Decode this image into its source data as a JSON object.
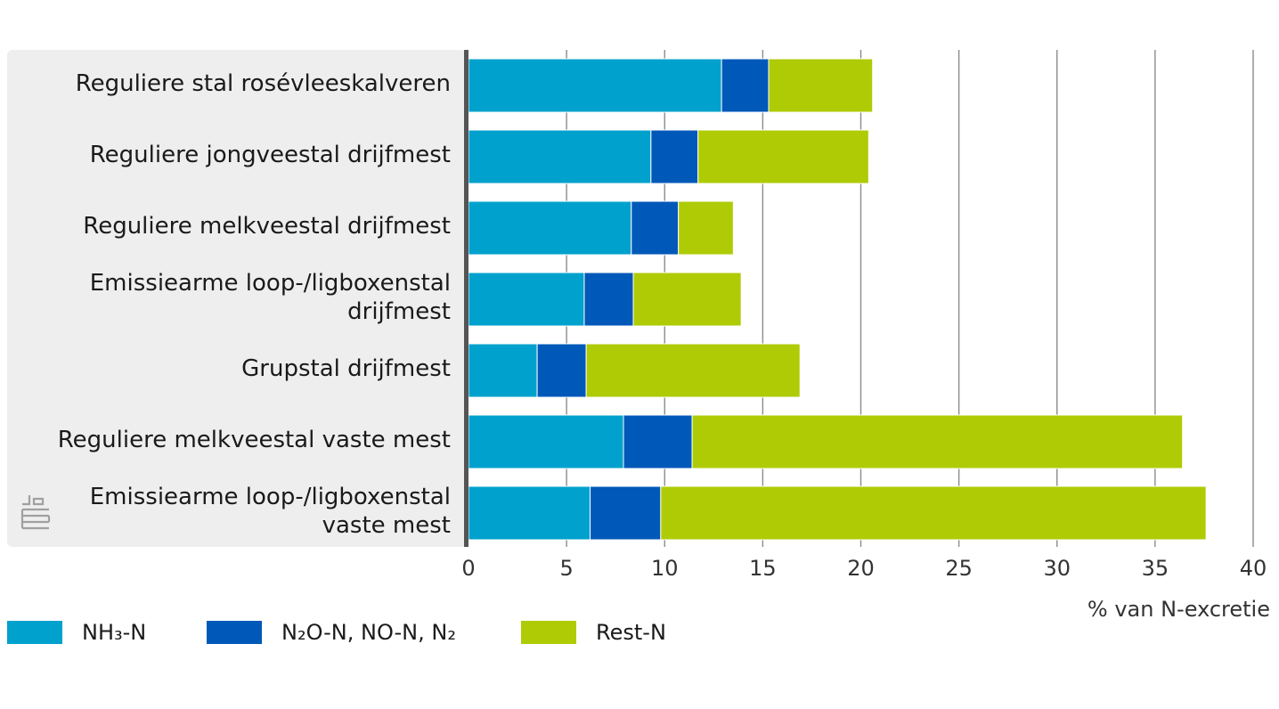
{
  "chart_data": {
    "type": "bar",
    "orientation": "horizontal",
    "stacked": true,
    "categories": [
      [
        "Reguliere stal rosévleeskalveren"
      ],
      [
        "Reguliere jongveestal drijfmest"
      ],
      [
        "Reguliere melkveestal drijfmest"
      ],
      [
        "Emissiearme loop-/ligboxenstal",
        "drijfmest"
      ],
      [
        "Grupstal drijfmest"
      ],
      [
        "Reguliere melkveestal vaste mest"
      ],
      [
        "Emissiearme loop-/ligboxenstal",
        "vaste mest"
      ]
    ],
    "series": [
      {
        "name": "NH₃-N",
        "color": "#00a1cd",
        "values": [
          12.9,
          9.3,
          8.3,
          5.9,
          3.5,
          7.9,
          6.2
        ]
      },
      {
        "name": "N₂O-N, NO-N, N₂",
        "color": "#0058b8",
        "values": [
          2.4,
          2.4,
          2.4,
          2.5,
          2.5,
          3.5,
          3.6
        ]
      },
      {
        "name": "Rest-N",
        "color": "#afcb05",
        "values": [
          5.3,
          8.7,
          2.8,
          5.5,
          10.9,
          25.0,
          27.8
        ]
      }
    ],
    "xticks": [
      0,
      5,
      10,
      15,
      20,
      25,
      30,
      35,
      40
    ],
    "xlim": [
      0,
      40
    ],
    "xlabel": "% van N-excretie",
    "grid": "vertical",
    "legend_position": "bottom-left"
  }
}
